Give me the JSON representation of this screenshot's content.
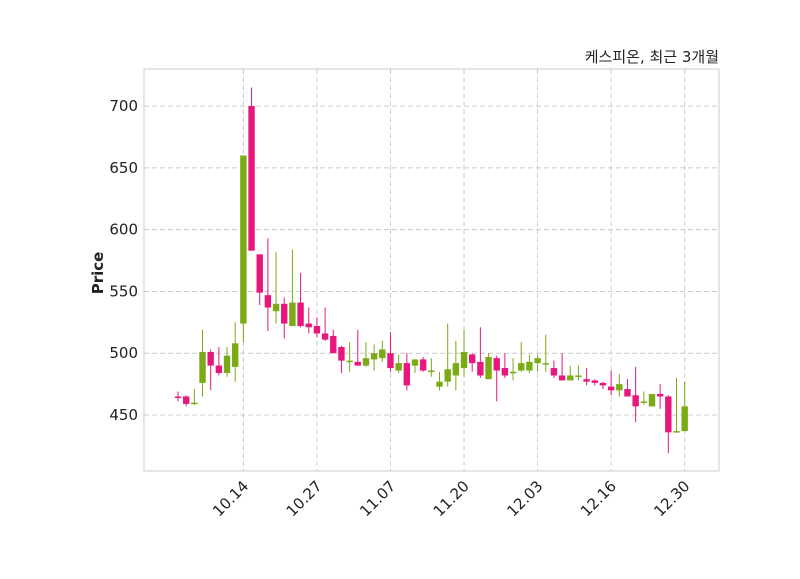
{
  "chart_data": {
    "type": "candlestick",
    "title": "케스피온, 최근 3개월",
    "xlabel": "",
    "ylabel": "Price",
    "ylim": [
      404.7,
      730
    ],
    "yticks": [
      450,
      500,
      550,
      600,
      650,
      700
    ],
    "xticks": [
      {
        "index": 8,
        "label": "10.14"
      },
      {
        "index": 17,
        "label": "10.27"
      },
      {
        "index": 26,
        "label": "11.07"
      },
      {
        "index": 35,
        "label": "11.20"
      },
      {
        "index": 44,
        "label": "12.03"
      },
      {
        "index": 53,
        "label": "12.16"
      },
      {
        "index": 62,
        "label": "12.30"
      }
    ],
    "grid": true,
    "colors": {
      "up": "#7aab14",
      "down": "#e8177d",
      "grid": "#cccccc",
      "frame": "#dddddd"
    },
    "ohlc": [
      [
        465,
        469,
        461,
        464
      ],
      [
        465,
        466,
        457,
        459
      ],
      [
        459,
        471,
        458,
        460
      ],
      [
        476,
        519,
        465,
        501
      ],
      [
        501,
        503,
        470,
        490
      ],
      [
        490,
        505,
        482,
        484
      ],
      [
        484,
        505,
        481,
        498
      ],
      [
        489,
        525,
        477,
        508
      ],
      [
        524,
        660,
        509,
        660
      ],
      [
        700,
        715,
        583,
        583
      ],
      [
        580,
        580,
        539,
        549
      ],
      [
        547,
        593,
        518,
        537
      ],
      [
        534,
        582,
        524,
        540
      ],
      [
        540,
        545,
        512,
        524
      ],
      [
        522,
        584,
        522,
        541
      ],
      [
        541,
        565,
        521,
        522
      ],
      [
        524,
        537,
        516,
        521
      ],
      [
        522,
        529,
        513,
        516
      ],
      [
        516,
        537,
        510,
        511
      ],
      [
        514,
        519,
        500,
        500
      ],
      [
        505,
        506,
        484,
        494
      ],
      [
        494,
        509,
        485,
        494
      ],
      [
        493,
        519,
        490,
        490
      ],
      [
        490,
        509,
        489,
        496
      ],
      [
        495,
        507,
        486,
        500
      ],
      [
        496,
        510,
        493,
        503
      ],
      [
        500,
        517,
        485,
        488
      ],
      [
        486,
        499,
        484,
        492
      ],
      [
        492,
        500,
        470,
        474
      ],
      [
        490,
        495,
        484,
        495
      ],
      [
        495,
        497,
        485,
        486
      ],
      [
        486,
        496,
        481,
        486
      ],
      [
        473,
        485,
        470,
        477
      ],
      [
        477,
        524,
        473,
        487
      ],
      [
        482,
        510,
        470,
        492
      ],
      [
        488,
        519,
        481,
        501
      ],
      [
        499,
        500,
        485,
        492
      ],
      [
        493,
        521,
        480,
        482
      ],
      [
        479,
        500,
        479,
        497
      ],
      [
        496,
        498,
        461,
        486
      ],
      [
        488,
        500,
        480,
        482
      ],
      [
        485,
        496,
        478,
        485
      ],
      [
        486,
        509,
        485,
        492
      ],
      [
        486,
        499,
        484,
        493
      ],
      [
        492,
        499,
        485,
        496
      ],
      [
        492,
        515,
        485,
        492
      ],
      [
        488,
        494,
        480,
        482
      ],
      [
        482,
        500,
        478,
        478
      ],
      [
        478,
        490,
        478,
        482
      ],
      [
        482,
        490,
        478,
        482
      ],
      [
        479,
        488,
        474,
        477
      ],
      [
        478,
        479,
        474,
        476
      ],
      [
        476,
        477,
        471,
        474
      ],
      [
        473,
        486,
        466,
        470
      ],
      [
        470,
        483,
        465,
        475
      ],
      [
        471,
        479,
        465,
        465
      ],
      [
        466,
        489,
        444,
        457
      ],
      [
        461,
        469,
        458,
        461
      ],
      [
        457,
        467,
        457,
        467
      ],
      [
        467,
        475,
        455,
        465
      ],
      [
        465,
        466,
        419,
        436
      ],
      [
        437,
        480,
        436,
        437
      ],
      [
        437,
        477,
        437,
        457
      ]
    ]
  }
}
